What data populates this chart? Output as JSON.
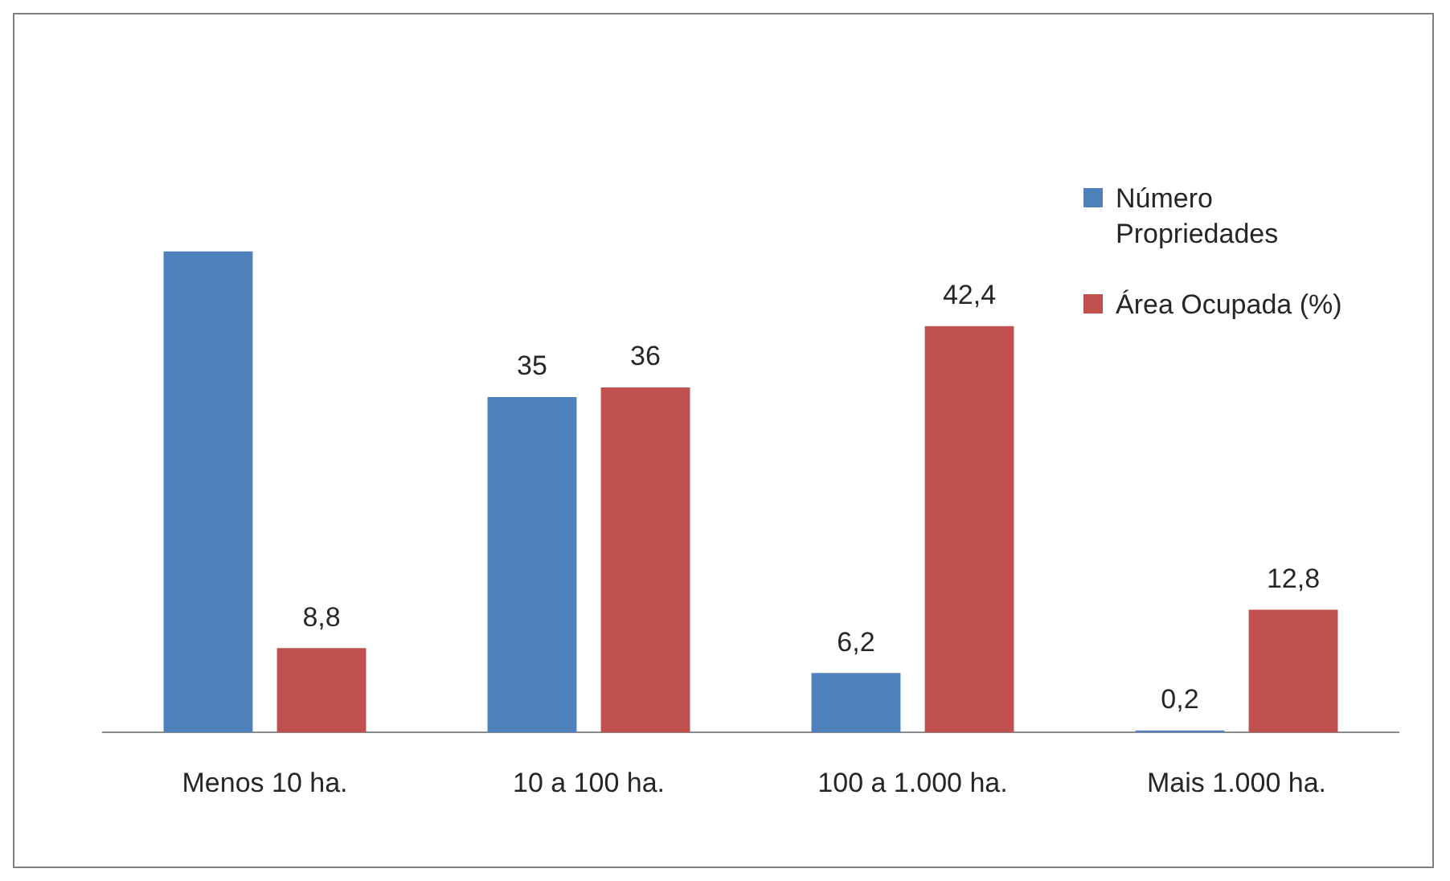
{
  "chart_data": {
    "type": "bar",
    "categories": [
      "Menos 10 ha.",
      "10 a 100 ha.",
      "100 a 1.000 ha.",
      "Mais 1.000 ha."
    ],
    "series": [
      {
        "name": "Número Propriedades",
        "color": "#4f81bd",
        "values": [
          50.2,
          35,
          6.2,
          0.2
        ],
        "value_labels": [
          null,
          "35",
          "6,2",
          "0,2"
        ]
      },
      {
        "name": "Área Ocupada (%)",
        "color": "#c0504d",
        "values": [
          8.8,
          36,
          42.4,
          12.8
        ],
        "value_labels": [
          "8,8",
          "36",
          "42,4",
          "12,8"
        ]
      }
    ],
    "legend": "top right",
    "grid": false
  }
}
